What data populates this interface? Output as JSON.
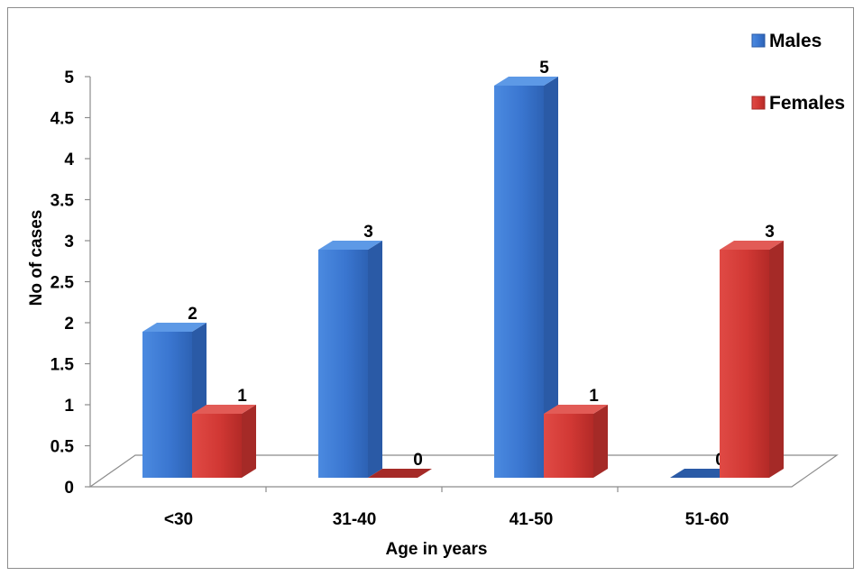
{
  "chart_data": {
    "type": "bar",
    "title": "",
    "xlabel": "Age in years",
    "ylabel": "No of cases",
    "categories": [
      "<30",
      "31-40",
      "41-50",
      "51-60"
    ],
    "ylim": [
      0,
      5
    ],
    "yticks": [
      "0",
      "0.5",
      "1",
      "1.5",
      "2",
      "2.5",
      "3",
      "3.5",
      "4",
      "4.5",
      "5"
    ],
    "grid": false,
    "legend_position": "top-right",
    "series": [
      {
        "name": "Males",
        "values": [
          2,
          3,
          5,
          0
        ],
        "color": "#3a78d4"
      },
      {
        "name": "Females",
        "values": [
          1,
          0,
          1,
          3
        ],
        "color": "#d63c38"
      }
    ]
  }
}
